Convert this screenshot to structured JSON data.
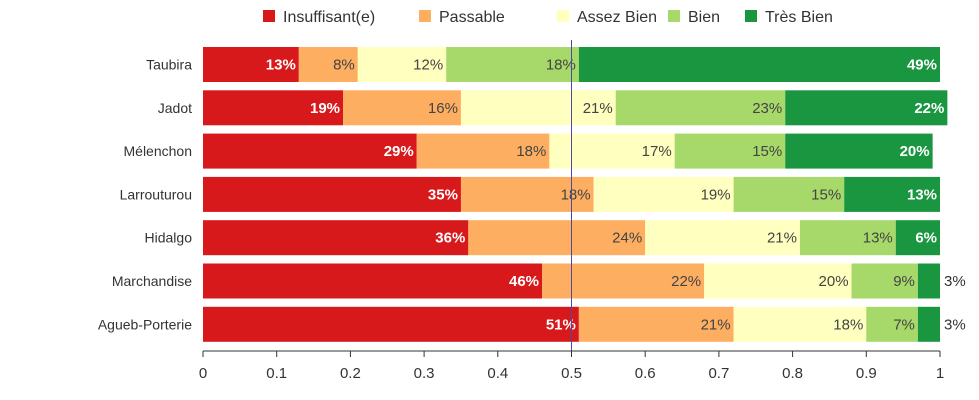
{
  "chart_data": {
    "type": "bar",
    "orientation": "horizontal",
    "stacked": true,
    "categories": [
      "Taubira",
      "Jadot",
      "Mélenchon",
      "Larrouturou",
      "Hidalgo",
      "Marchandise",
      "Agueb-Porterie"
    ],
    "series": [
      {
        "name": "Insuffisant(e)",
        "color": "#d7191c",
        "values": [
          0.13,
          0.19,
          0.29,
          0.35,
          0.36,
          0.46,
          0.51
        ],
        "labels": [
          "13%",
          "19%",
          "29%",
          "35%",
          "36%",
          "46%",
          "51%"
        ]
      },
      {
        "name": "Passable",
        "color": "#fdae61",
        "values": [
          0.08,
          0.16,
          0.18,
          0.18,
          0.24,
          0.22,
          0.21
        ],
        "labels": [
          "8%",
          "16%",
          "18%",
          "18%",
          "24%",
          "22%",
          "21%"
        ]
      },
      {
        "name": "Assez Bien",
        "color": "#ffffbf",
        "values": [
          0.12,
          0.21,
          0.17,
          0.19,
          0.21,
          0.2,
          0.18
        ],
        "labels": [
          "12%",
          "21%",
          "17%",
          "19%",
          "21%",
          "20%",
          "18%"
        ]
      },
      {
        "name": "Bien",
        "color": "#a6d96a",
        "values": [
          0.18,
          0.23,
          0.15,
          0.15,
          0.13,
          0.09,
          0.07
        ],
        "labels": [
          "18%",
          "23%",
          "15%",
          "15%",
          "13%",
          "9%",
          "7%"
        ]
      },
      {
        "name": "Très Bien",
        "color": "#1a9641",
        "values": [
          0.49,
          0.22,
          0.2,
          0.13,
          0.06,
          0.03,
          0.03
        ],
        "labels": [
          "49%",
          "22%",
          "20%",
          "13%",
          "6%",
          "3%",
          "3%"
        ]
      }
    ],
    "xlim": [
      0,
      1
    ],
    "xticks": [
      "0",
      "0.1",
      "0.2",
      "0.3",
      "0.4",
      "0.5",
      "0.6",
      "0.7",
      "0.8",
      "0.9",
      "1"
    ],
    "reference_line": 0.5,
    "legend_position": "top"
  }
}
